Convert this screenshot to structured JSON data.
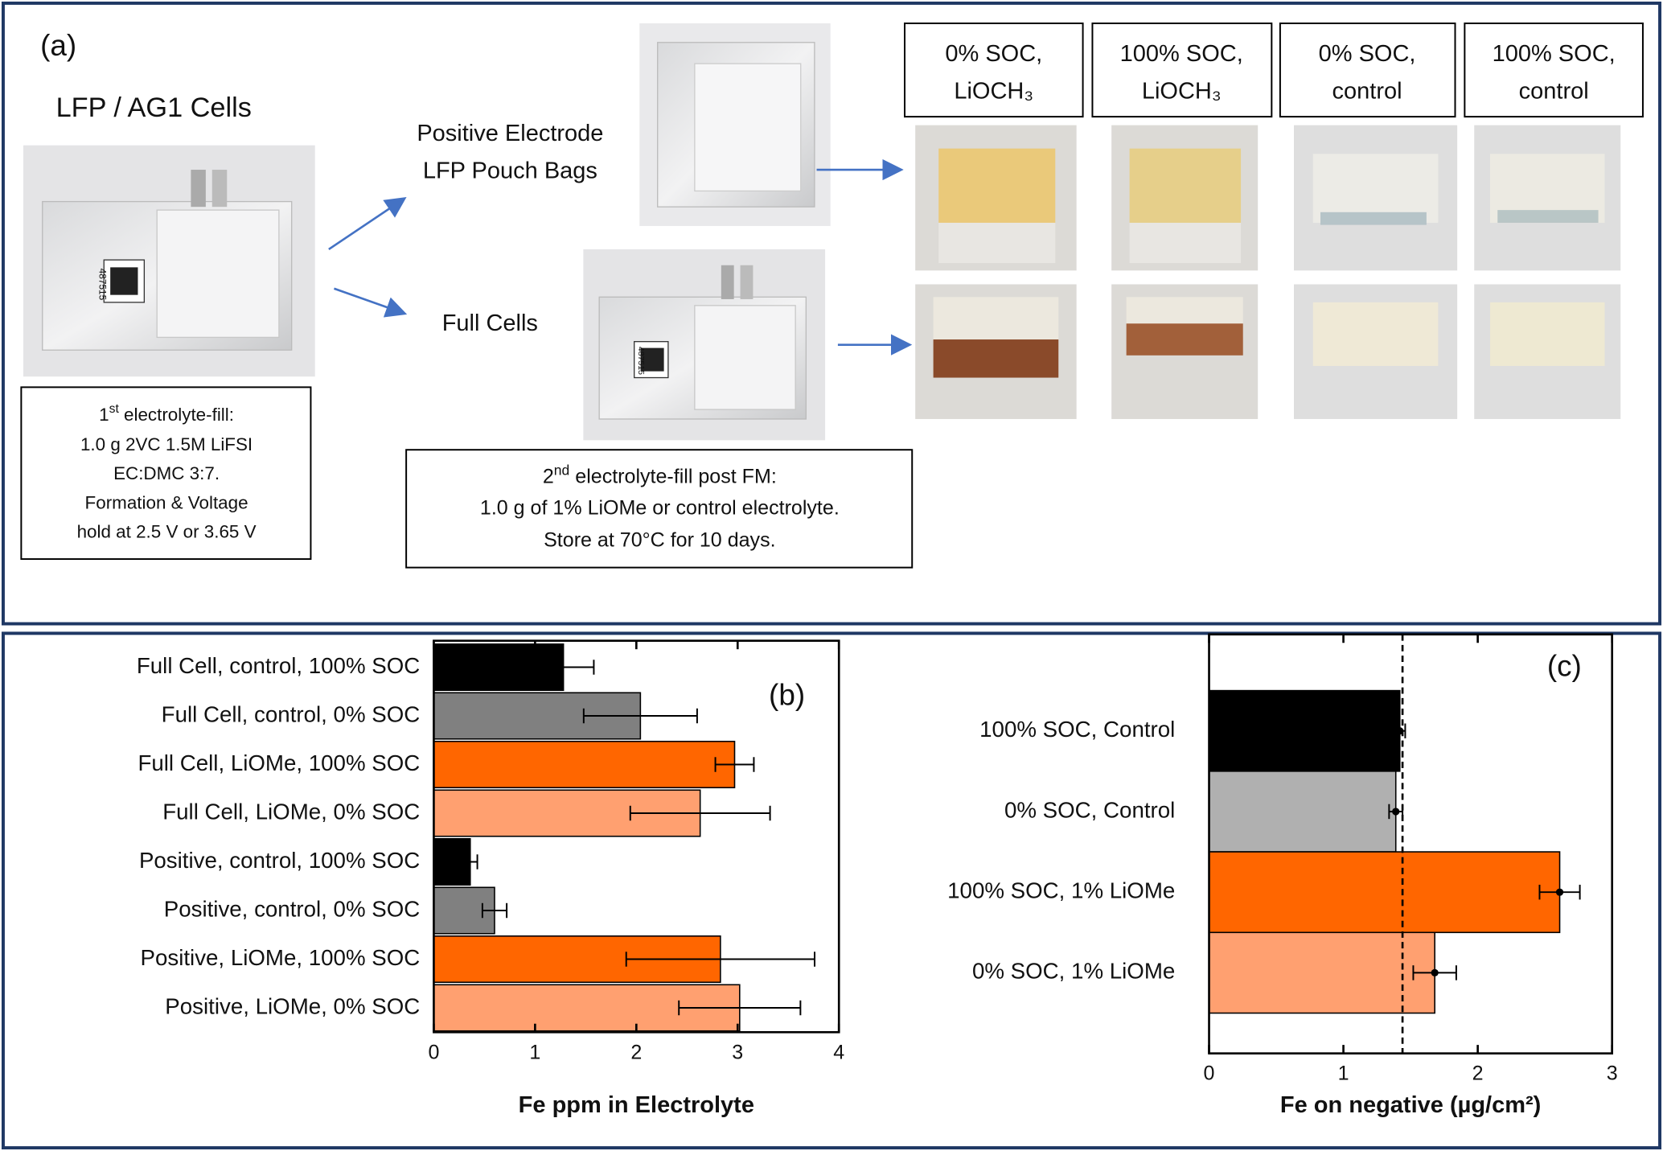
{
  "panel_a": {
    "label": "(a)",
    "cells_title": "LFP / AG1 Cells",
    "photo_code": "487515",
    "fill1": {
      "first": {
        "pre": "1",
        "sup": "st",
        "post": " electrolyte-fill:"
      },
      "lines": [
        "1.0 g 2VC 1.5M LiFSI",
        "EC:DMC 3:7.",
        "Formation & Voltage",
        "hold at 2.5 V or 3.65 V"
      ]
    },
    "positive_lines": [
      "Positive Electrode",
      "LFP Pouch Bags"
    ],
    "full_cells": "Full Cells",
    "fill2": {
      "first": {
        "pre": "2",
        "sup": "nd",
        "post": " electrolyte-fill post FM:"
      },
      "lines": [
        "1.0 g of 1% LiOMe or control electrolyte.",
        "Store at 70°C for 10 days."
      ]
    },
    "headers": [
      [
        "0% SOC,",
        "LiOCH₃"
      ],
      [
        "100% SOC,",
        "LiOCH₃"
      ],
      [
        "0% SOC,",
        "control"
      ],
      [
        "100% SOC,",
        "control"
      ]
    ]
  },
  "chart_data": [
    {
      "type": "bar",
      "orientation": "horizontal",
      "label": "(b)",
      "categories": [
        "Full Cell, control, 100% SOC",
        "Full Cell, control, 0% SOC",
        "Full Cell, LiOMe, 100% SOC",
        "Full Cell, LiOMe, 0% SOC",
        "Positive, control, 100% SOC",
        "Positive, control, 0% SOC",
        "Positive, LiOMe, 100% SOC",
        "Positive, LiOMe, 0% SOC"
      ],
      "values": [
        1.28,
        2.04,
        2.97,
        2.63,
        0.36,
        0.6,
        2.83,
        3.02
      ],
      "errors": [
        0.3,
        0.56,
        0.19,
        0.69,
        0.07,
        0.12,
        0.93,
        0.6
      ],
      "colors": [
        "#000000",
        "#808080",
        "#ff6600",
        "#ffa070",
        "#000000",
        "#808080",
        "#ff6600",
        "#ffa070"
      ],
      "xlabel": "Fe ppm in Electrolyte",
      "xlim": [
        0,
        4
      ],
      "xticks": [
        0,
        1,
        2,
        3,
        4
      ],
      "markers": false
    },
    {
      "type": "bar",
      "orientation": "horizontal",
      "label": "(c)",
      "categories": [
        "100% SOC, Control",
        "0% SOC, Control",
        "100% SOC, 1% LiOMe",
        "0% SOC, 1% LiOMe"
      ],
      "values": [
        1.42,
        1.39,
        2.61,
        1.68
      ],
      "errors": [
        0.04,
        0.05,
        0.15,
        0.16
      ],
      "colors": [
        "#000000",
        "#b0b0b0",
        "#ff6600",
        "#ffa070"
      ],
      "xlabel": "Fe on negative (µg/cm²)",
      "xlim": [
        0,
        3
      ],
      "xticks": [
        0,
        1,
        2,
        3
      ],
      "markers": true,
      "reference_line": 1.44
    }
  ]
}
